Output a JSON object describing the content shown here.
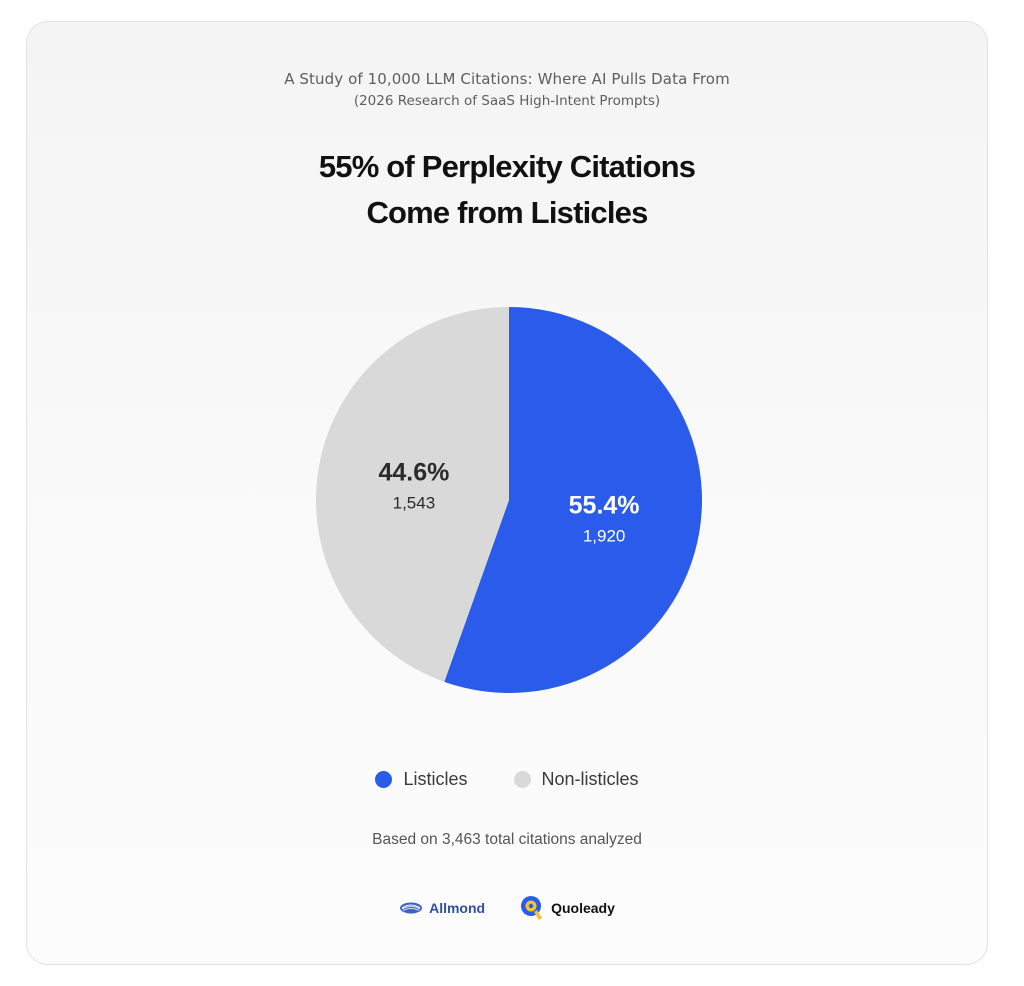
{
  "header": {
    "study_title": "A Study of 10,000 LLM Citations: Where AI Pulls Data From",
    "study_subtitle": "(2026 Research of SaaS High-Intent Prompts)",
    "headline_line1": "55% of Perplexity Citations",
    "headline_line2": "Come from Listicles"
  },
  "chart_data": {
    "type": "pie",
    "slices": [
      {
        "label": "Listicles",
        "percent_label": "55.4%",
        "value": 1920,
        "value_label": "1,920",
        "color": "#2a5bea"
      },
      {
        "label": "Non-listicles",
        "percent_label": "44.6%",
        "value": 1543,
        "value_label": "1,543",
        "color": "#d9d9d9"
      }
    ],
    "start_angle": "12 o'clock, clockwise",
    "legend_position": "bottom"
  },
  "footer": {
    "note": "Based on 3,463 total citations analyzed",
    "logos": [
      {
        "name": "Allmond",
        "icon": "allmond-logo-icon",
        "color": "#2f4fa5"
      },
      {
        "name": "Quoleady",
        "icon": "quoleady-logo-icon",
        "color": "#111111"
      }
    ]
  }
}
